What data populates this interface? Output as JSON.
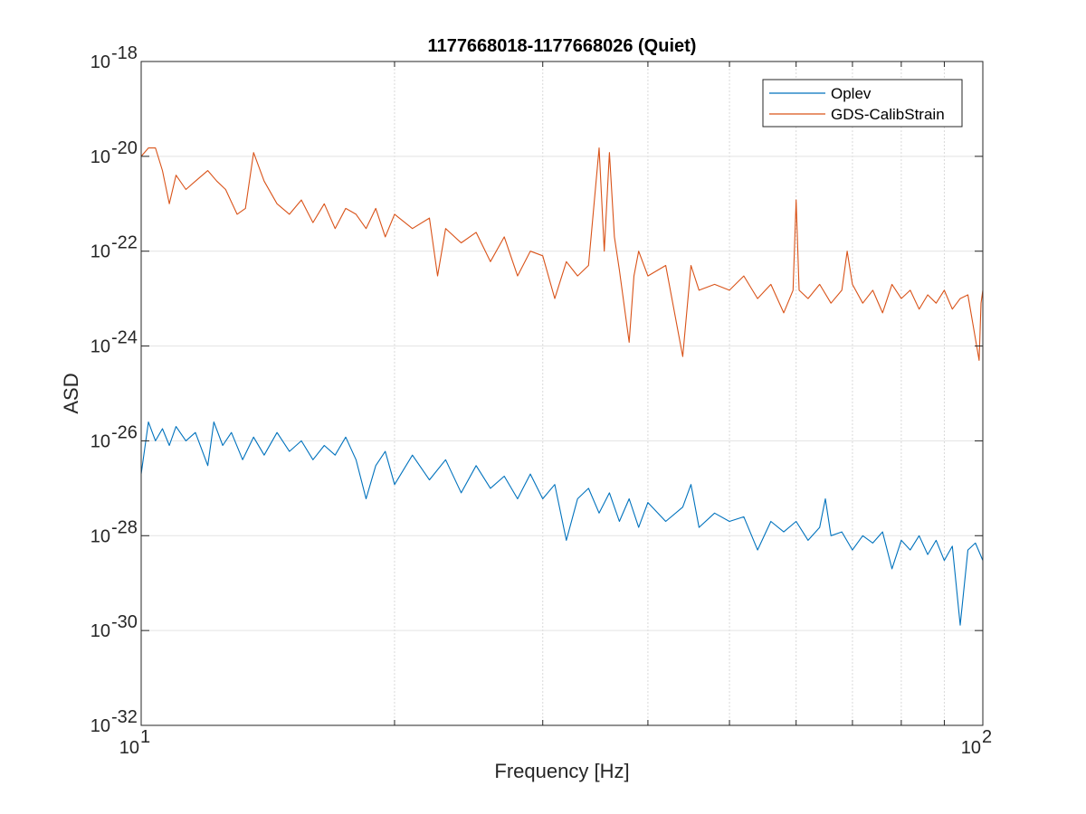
{
  "chart_data": {
    "type": "line",
    "title": "1177668018-1177668026 (Quiet)",
    "xlabel": "Frequency [Hz]",
    "ylabel": "ASD",
    "xscale": "log",
    "yscale": "log",
    "xlim": [
      10,
      100
    ],
    "ylim": [
      1e-32,
      1e-18
    ],
    "grid": true,
    "legend_position": "top-right",
    "x_ticks": [
      {
        "value": 10,
        "base": "10",
        "exp": "1"
      },
      {
        "value": 100,
        "base": "10",
        "exp": "2"
      }
    ],
    "y_ticks": [
      {
        "value": 1e-32,
        "base": "10",
        "exp": "-32"
      },
      {
        "value": 1e-30,
        "base": "10",
        "exp": "-30"
      },
      {
        "value": 1e-28,
        "base": "10",
        "exp": "-28"
      },
      {
        "value": 1e-26,
        "base": "10",
        "exp": "-26"
      },
      {
        "value": 1e-24,
        "base": "10",
        "exp": "-24"
      },
      {
        "value": 1e-22,
        "base": "10",
        "exp": "-22"
      },
      {
        "value": 1e-20,
        "base": "10",
        "exp": "-20"
      },
      {
        "value": 1e-18,
        "base": "10",
        "exp": "-18"
      }
    ],
    "series": [
      {
        "name": "Oplev",
        "color": "#0072BD",
        "points": [
          [
            10.0,
            2e-27
          ],
          [
            10.2,
            2.5e-26
          ],
          [
            10.4,
            1e-26
          ],
          [
            10.6,
            1.8e-26
          ],
          [
            10.8,
            8e-27
          ],
          [
            11.0,
            2e-26
          ],
          [
            11.3,
            1e-26
          ],
          [
            11.6,
            1.5e-26
          ],
          [
            12.0,
            3e-27
          ],
          [
            12.2,
            2.5e-26
          ],
          [
            12.5,
            8e-27
          ],
          [
            12.8,
            1.5e-26
          ],
          [
            13.2,
            4e-27
          ],
          [
            13.6,
            1.2e-26
          ],
          [
            14.0,
            5e-27
          ],
          [
            14.5,
            1.5e-26
          ],
          [
            15.0,
            6e-27
          ],
          [
            15.5,
            1e-26
          ],
          [
            16.0,
            4e-27
          ],
          [
            16.5,
            8e-27
          ],
          [
            17.0,
            5e-27
          ],
          [
            17.5,
            1.2e-26
          ],
          [
            18.0,
            4e-27
          ],
          [
            18.5,
            6e-28
          ],
          [
            19.0,
            3e-27
          ],
          [
            19.5,
            6e-27
          ],
          [
            20.0,
            1.2e-27
          ],
          [
            21.0,
            5e-27
          ],
          [
            22.0,
            1.5e-27
          ],
          [
            23.0,
            4e-27
          ],
          [
            24.0,
            8e-28
          ],
          [
            25.0,
            3e-27
          ],
          [
            26.0,
            1e-27
          ],
          [
            27.0,
            1.8e-27
          ],
          [
            28.0,
            6e-28
          ],
          [
            29.0,
            2e-27
          ],
          [
            30.0,
            6e-28
          ],
          [
            31.0,
            1.2e-27
          ],
          [
            32.0,
            8e-29
          ],
          [
            33.0,
            6e-28
          ],
          [
            34.0,
            1e-27
          ],
          [
            35.0,
            3e-28
          ],
          [
            36.0,
            8e-28
          ],
          [
            37.0,
            2e-28
          ],
          [
            38.0,
            6e-28
          ],
          [
            39.0,
            1.5e-28
          ],
          [
            40.0,
            5e-28
          ],
          [
            42.0,
            2e-28
          ],
          [
            44.0,
            4e-28
          ],
          [
            45.0,
            1.2e-27
          ],
          [
            46.0,
            1.5e-28
          ],
          [
            48.0,
            3e-28
          ],
          [
            50.0,
            2e-28
          ],
          [
            52.0,
            2.5e-28
          ],
          [
            54.0,
            5e-29
          ],
          [
            56.0,
            2e-28
          ],
          [
            58.0,
            1.2e-28
          ],
          [
            60.0,
            2e-28
          ],
          [
            62.0,
            8e-29
          ],
          [
            64.0,
            1.5e-28
          ],
          [
            65.0,
            6e-28
          ],
          [
            66.0,
            1e-28
          ],
          [
            68.0,
            1.2e-28
          ],
          [
            70.0,
            5e-29
          ],
          [
            72.0,
            1e-28
          ],
          [
            74.0,
            7e-29
          ],
          [
            76.0,
            1.2e-28
          ],
          [
            78.0,
            2e-29
          ],
          [
            80.0,
            8e-29
          ],
          [
            82.0,
            5e-29
          ],
          [
            84.0,
            1e-28
          ],
          [
            86.0,
            4e-29
          ],
          [
            88.0,
            8e-29
          ],
          [
            90.0,
            3e-29
          ],
          [
            92.0,
            6e-29
          ],
          [
            94.0,
            1.3e-30
          ],
          [
            96.0,
            5e-29
          ],
          [
            98.0,
            7e-29
          ],
          [
            100.0,
            3e-29
          ]
        ]
      },
      {
        "name": "GDS-CalibStrain",
        "color": "#D95319",
        "points": [
          [
            10.0,
            1e-20
          ],
          [
            10.2,
            1.5e-20
          ],
          [
            10.4,
            1.5e-20
          ],
          [
            10.6,
            5e-21
          ],
          [
            10.8,
            1e-21
          ],
          [
            11.0,
            4e-21
          ],
          [
            11.3,
            2e-21
          ],
          [
            11.6,
            3e-21
          ],
          [
            12.0,
            5e-21
          ],
          [
            12.3,
            3e-21
          ],
          [
            12.6,
            2e-21
          ],
          [
            13.0,
            6e-22
          ],
          [
            13.3,
            8e-22
          ],
          [
            13.6,
            1.2e-20
          ],
          [
            14.0,
            3e-21
          ],
          [
            14.5,
            1e-21
          ],
          [
            15.0,
            6e-22
          ],
          [
            15.5,
            1.2e-21
          ],
          [
            16.0,
            4e-22
          ],
          [
            16.5,
            1e-21
          ],
          [
            17.0,
            3e-22
          ],
          [
            17.5,
            8e-22
          ],
          [
            18.0,
            6e-22
          ],
          [
            18.5,
            3e-22
          ],
          [
            19.0,
            8e-22
          ],
          [
            19.5,
            2e-22
          ],
          [
            20.0,
            6e-22
          ],
          [
            21.0,
            3e-22
          ],
          [
            22.0,
            5e-22
          ],
          [
            22.5,
            3e-23
          ],
          [
            23.0,
            3e-22
          ],
          [
            24.0,
            1.5e-22
          ],
          [
            25.0,
            2.5e-22
          ],
          [
            26.0,
            6e-23
          ],
          [
            27.0,
            2e-22
          ],
          [
            28.0,
            3e-23
          ],
          [
            29.0,
            1e-22
          ],
          [
            30.0,
            8e-23
          ],
          [
            31.0,
            1e-23
          ],
          [
            32.0,
            6e-23
          ],
          [
            33.0,
            3e-23
          ],
          [
            34.0,
            5e-23
          ],
          [
            35.0,
            1.5e-20
          ],
          [
            35.5,
            1e-22
          ],
          [
            36.0,
            1.2e-20
          ],
          [
            36.5,
            2e-22
          ],
          [
            37.0,
            4e-23
          ],
          [
            38.0,
            1.2e-24
          ],
          [
            38.5,
            3e-23
          ],
          [
            39.0,
            1e-22
          ],
          [
            40.0,
            3e-23
          ],
          [
            42.0,
            5e-23
          ],
          [
            44.0,
            6e-25
          ],
          [
            45.0,
            5e-23
          ],
          [
            46.0,
            1.5e-23
          ],
          [
            48.0,
            2e-23
          ],
          [
            50.0,
            1.5e-23
          ],
          [
            52.0,
            3e-23
          ],
          [
            54.0,
            1e-23
          ],
          [
            56.0,
            2e-23
          ],
          [
            58.0,
            5e-24
          ],
          [
            59.5,
            1.5e-23
          ],
          [
            60.0,
            1.2e-21
          ],
          [
            60.5,
            1.5e-23
          ],
          [
            62.0,
            1e-23
          ],
          [
            64.0,
            2e-23
          ],
          [
            66.0,
            8e-24
          ],
          [
            68.0,
            1.5e-23
          ],
          [
            69.0,
            1e-22
          ],
          [
            70.0,
            2e-23
          ],
          [
            72.0,
            8e-24
          ],
          [
            74.0,
            1.5e-23
          ],
          [
            76.0,
            5e-24
          ],
          [
            78.0,
            2e-23
          ],
          [
            80.0,
            1e-23
          ],
          [
            82.0,
            1.5e-23
          ],
          [
            84.0,
            6e-24
          ],
          [
            86.0,
            1.2e-23
          ],
          [
            88.0,
            8e-24
          ],
          [
            90.0,
            1.5e-23
          ],
          [
            92.0,
            6e-24
          ],
          [
            94.0,
            1e-23
          ],
          [
            96.0,
            1.2e-23
          ],
          [
            99.0,
            5e-25
          ],
          [
            99.5,
            8e-24
          ],
          [
            100.0,
            1.5e-23
          ]
        ]
      }
    ]
  }
}
